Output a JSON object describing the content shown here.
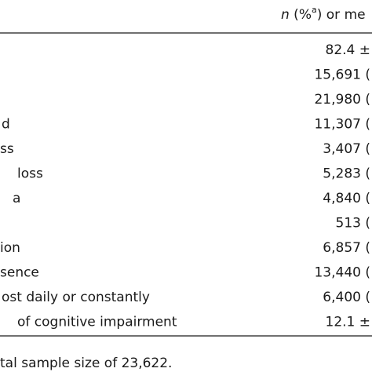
{
  "header": {
    "parts": [
      "n",
      " (%",
      "a",
      ") or me"
    ]
  },
  "table": {
    "rows": [
      [
        null,
        "82.4 ±"
      ],
      [
        null,
        "15,691 ("
      ],
      [
        null,
        "21,980 ("
      ],
      [
        "d",
        "11,307 ("
      ],
      [
        "ss",
        "3,407 ("
      ],
      [
        "loss",
        "5,283 ("
      ],
      [
        "a",
        "4,840 ("
      ],
      [
        null,
        "513 ("
      ],
      [
        "ion",
        "6,857 ("
      ],
      [
        "sence",
        "13,440 ("
      ],
      [
        "ost daily or constantly",
        "6,400 ("
      ],
      [
        "of cognitive impairment",
        "12.1 ±"
      ]
    ]
  },
  "footnote": "tal sample size of 23,622."
}
